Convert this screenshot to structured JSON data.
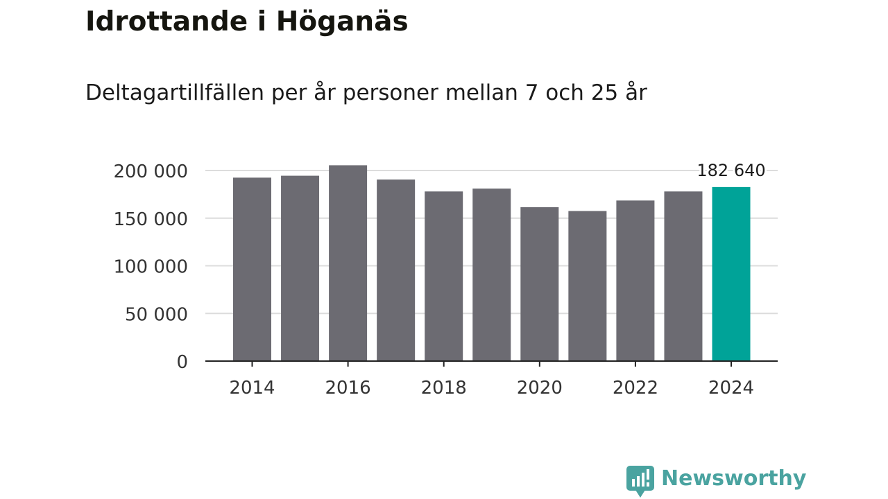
{
  "title": "Idrottande i Höganäs",
  "subtitle": "Deltagartillfällen per år personer mellan 7 och 25 år",
  "brand": {
    "name": "Newsworthy",
    "logo_icon": "newsworthy-bar-chart-speech-bubble-icon",
    "color": "#4aa3a0"
  },
  "colors": {
    "bar": "#6c6b72",
    "highlight": "#00a398",
    "grid": "#dcdcdc",
    "axis": "#222222",
    "text": "#333333"
  },
  "chart_data": {
    "type": "bar",
    "title": "Idrottande i Höganäs",
    "subtitle": "Deltagartillfällen per år personer mellan 7 och 25 år",
    "categories": [
      "2014",
      "2015",
      "2016",
      "2017",
      "2018",
      "2019",
      "2020",
      "2021",
      "2022",
      "2023",
      "2024"
    ],
    "values": [
      192500,
      194500,
      205500,
      190500,
      178000,
      181000,
      161500,
      157500,
      168500,
      178000,
      182640
    ],
    "highlight_index": 10,
    "highlight_label": "182 640",
    "xlabel": "",
    "ylabel": "",
    "ylim": [
      0,
      200000
    ],
    "yticks": [
      0,
      50000,
      100000,
      150000,
      200000
    ],
    "ytick_labels": [
      "0",
      "50 000",
      "100 000",
      "150 000",
      "200 000"
    ],
    "xtick_labels": [
      "2014",
      "2016",
      "2018",
      "2020",
      "2022",
      "2024"
    ],
    "grid": true,
    "legend": "none"
  }
}
